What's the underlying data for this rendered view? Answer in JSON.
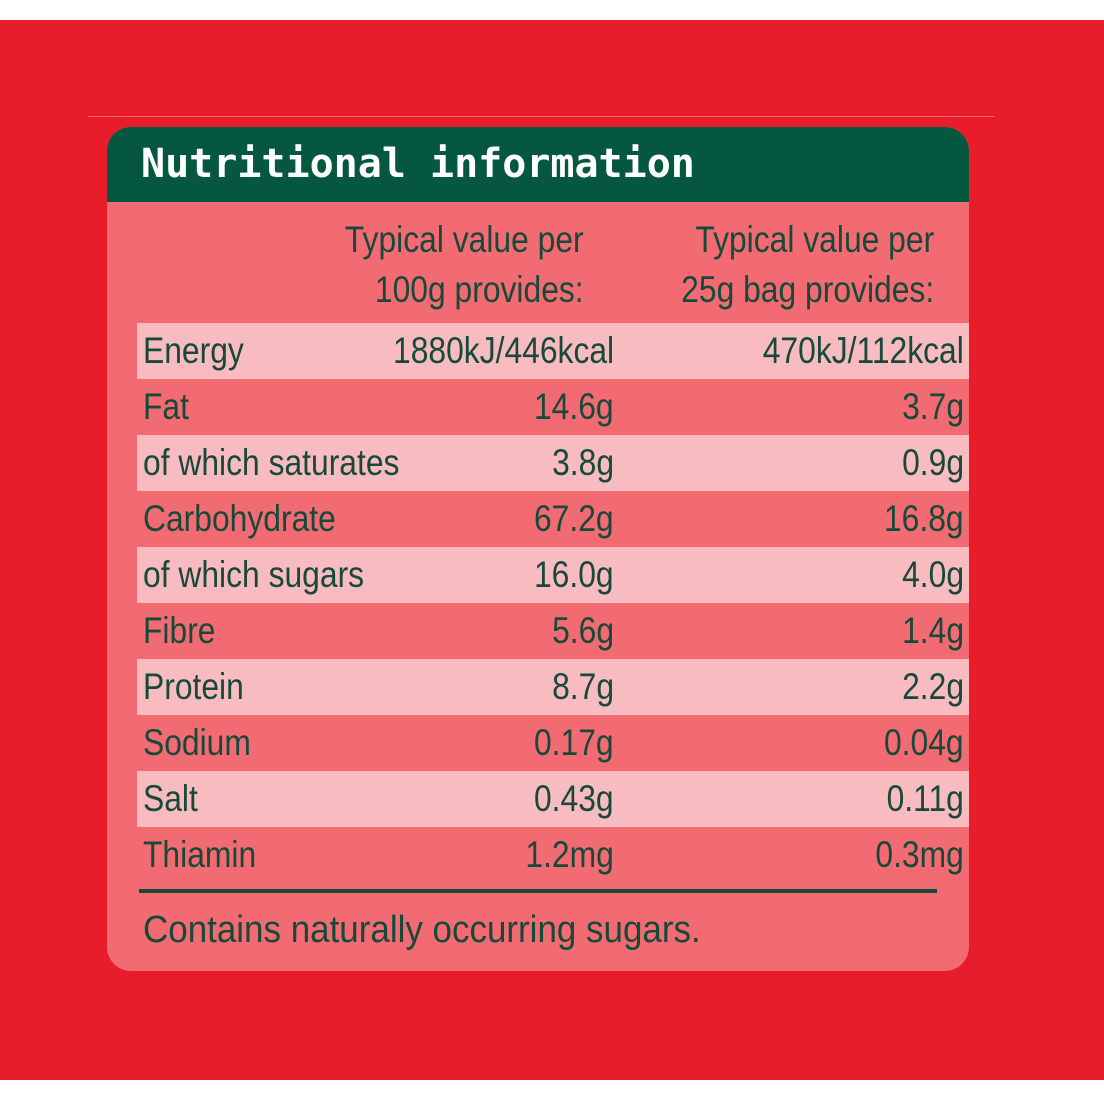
{
  "panel": {
    "title": "Nutritional information",
    "header": {
      "col1_line1": "Typical value per",
      "col1_line2": "100g provides:",
      "col2_line1": "Typical value per",
      "col2_line2": "25g bag provides:"
    },
    "rows": [
      {
        "label": "Energy",
        "per100g": "1880kJ/446kcal",
        "per25g": "470kJ/112kcal"
      },
      {
        "label": "Fat",
        "per100g": "14.6g",
        "per25g": "3.7g"
      },
      {
        "label": "of which saturates",
        "per100g": "3.8g",
        "per25g": "0.9g"
      },
      {
        "label": "Carbohydrate",
        "per100g": "67.2g",
        "per25g": "16.8g"
      },
      {
        "label": "of which sugars",
        "per100g": "16.0g",
        "per25g": "4.0g"
      },
      {
        "label": "Fibre",
        "per100g": "5.6g",
        "per25g": "1.4g"
      },
      {
        "label": "Protein",
        "per100g": "8.7g",
        "per25g": "2.2g"
      },
      {
        "label": "Sodium",
        "per100g": "0.17g",
        "per25g": "0.04g"
      },
      {
        "label": "Salt",
        "per100g": "0.43g",
        "per25g": "0.11g"
      },
      {
        "label": "Thiamin",
        "per100g": "1.2mg",
        "per25g": "0.3mg"
      }
    ],
    "footnote": "Contains naturally occurring sugars."
  },
  "colors": {
    "background_red": "#e81c2a",
    "panel_pink": "#f26b72",
    "row_light": "#f8bcc0",
    "title_green": "#065740",
    "text_green": "#16493a"
  }
}
